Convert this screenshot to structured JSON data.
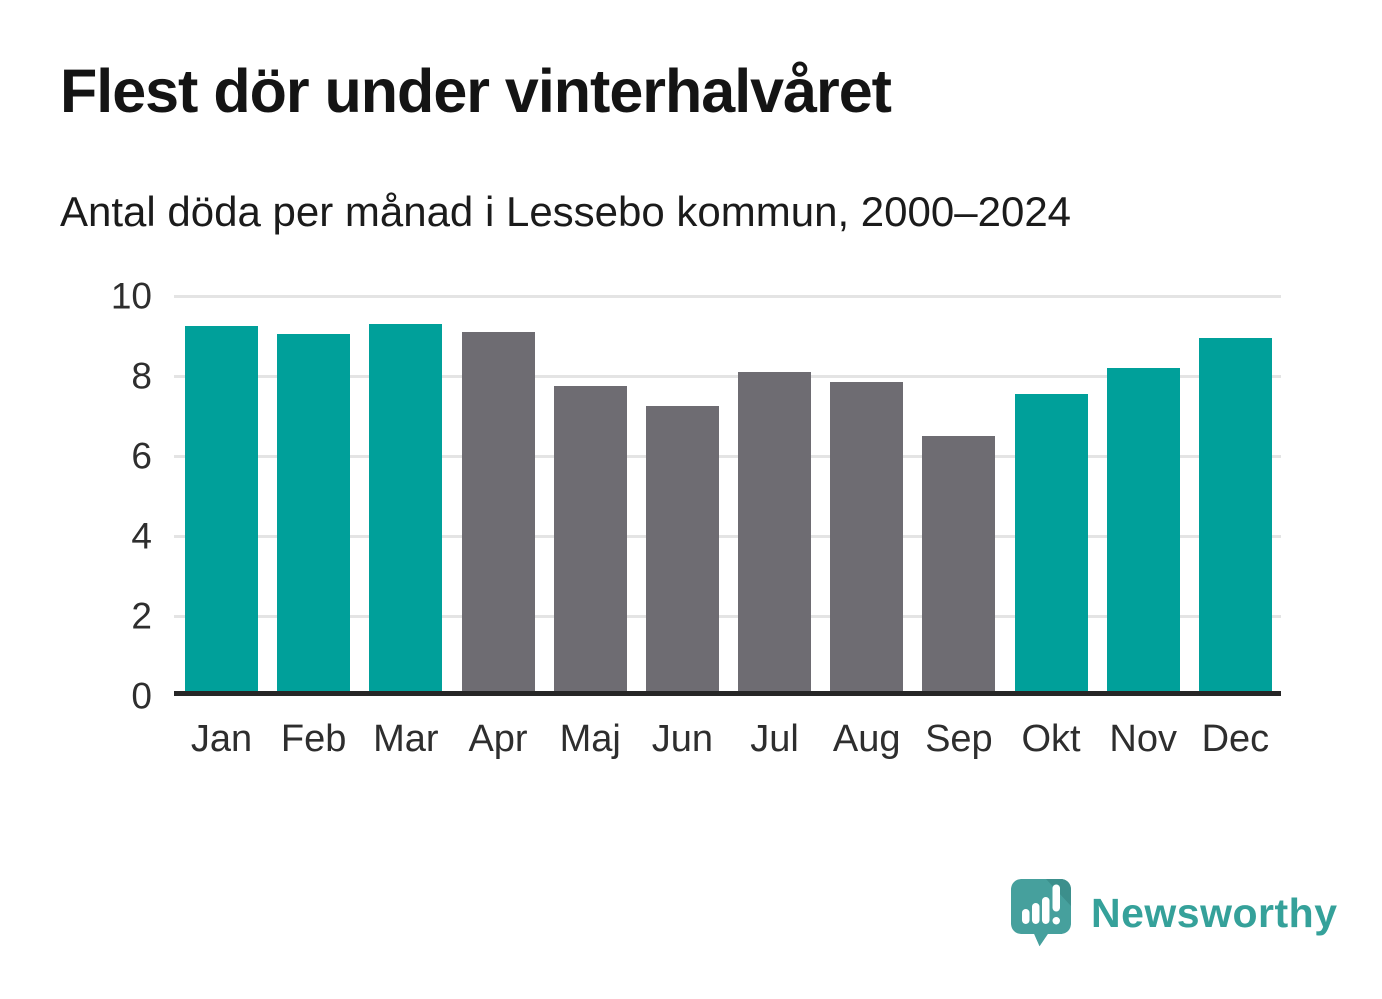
{
  "chart_data": {
    "type": "bar",
    "title": "Flest dör under vinterhalvåret",
    "subtitle": "Antal döda per månad i Lessebo kommun, 2000–2024",
    "categories": [
      "Jan",
      "Feb",
      "Mar",
      "Apr",
      "Maj",
      "Jun",
      "Jul",
      "Aug",
      "Sep",
      "Okt",
      "Nov",
      "Dec"
    ],
    "values": [
      9.25,
      9.05,
      9.3,
      9.1,
      7.75,
      7.25,
      8.1,
      7.85,
      6.5,
      7.55,
      8.2,
      8.95
    ],
    "highlighted": [
      true,
      true,
      true,
      false,
      false,
      false,
      false,
      false,
      false,
      true,
      true,
      true
    ],
    "xlabel": "",
    "ylabel": "",
    "ylim": [
      0,
      10
    ],
    "y_ticks": [
      0,
      2,
      4,
      6,
      8,
      10
    ],
    "grid": "horizontal",
    "legend": "none",
    "colors": {
      "highlight_teal": "#00a09a",
      "muted_gray": "#6e6c72",
      "gridline": "#e4e4e4",
      "baseline": "#262626"
    }
  },
  "footer": {
    "brand_name": "Newsworthy",
    "brand_color": "#35a19a",
    "logo_icon": "speech-bubble-bar-chart-icon",
    "logo_bubble_color": "#46a09d",
    "logo_fold_color": "#3c8f8c"
  }
}
